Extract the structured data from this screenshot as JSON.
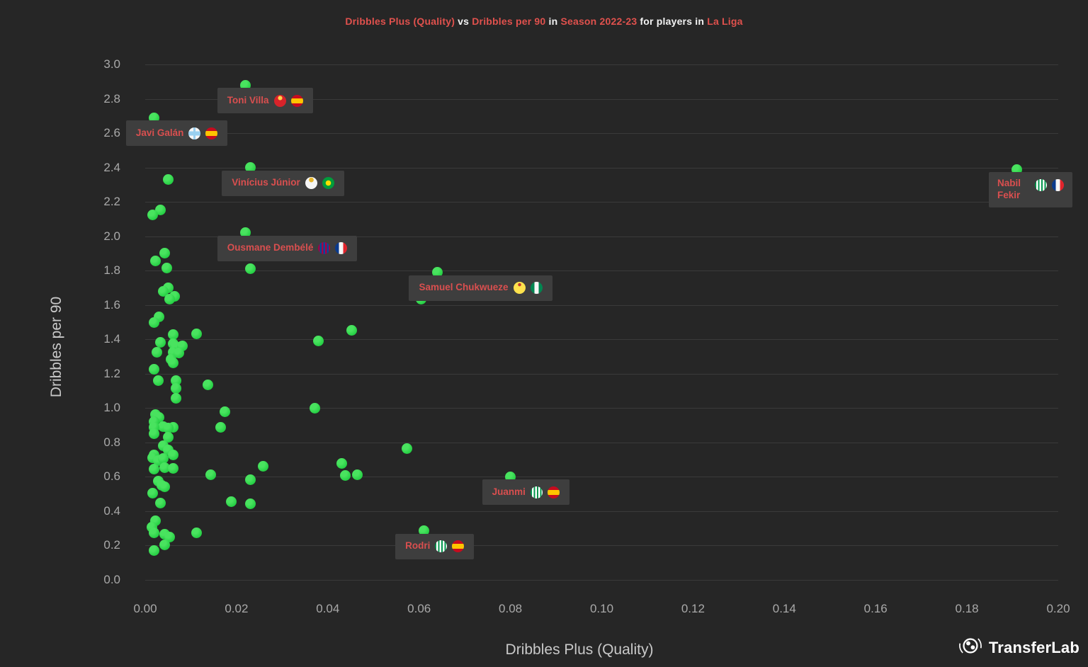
{
  "title": {
    "segments": [
      {
        "text": "Dribbles Plus (Quality)",
        "emphasis": true
      },
      {
        "text": " vs ",
        "emphasis": false
      },
      {
        "text": "Dribbles per 90",
        "emphasis": true
      },
      {
        "text": " in ",
        "emphasis": false
      },
      {
        "text": "Season 2022-23",
        "emphasis": true
      },
      {
        "text": " for players in ",
        "emphasis": false
      },
      {
        "text": "La Liga",
        "emphasis": true
      }
    ]
  },
  "colors": {
    "background": "#262626",
    "gridline": "#3a3a3a",
    "dot_green": "#23ce42",
    "title_emphasis": "#e0514d",
    "label_text": "#d94f4f",
    "label_background": "#3e3e3e",
    "tick_text": "#a9a9a9",
    "axis_title_text": "#c9c9c9"
  },
  "branding": {
    "logo_icon": "football-icon",
    "logo_text": "TransferLab"
  },
  "chart_data": {
    "type": "scatter",
    "title": "Dribbles Plus (Quality) vs Dribbles per 90 in Season 2022-23 for players in La Liga",
    "xlabel": "Dribbles Plus (Quality)",
    "ylabel": "Dribbles per 90",
    "xlim": [
      0.0,
      0.2
    ],
    "ylim": [
      0.0,
      3.0
    ],
    "x_ticks": [
      "0.00",
      "0.02",
      "0.04",
      "0.06",
      "0.08",
      "0.10",
      "0.12",
      "0.14",
      "0.16",
      "0.18",
      "0.20"
    ],
    "y_ticks": [
      "0.0",
      "0.2",
      "0.4",
      "0.6",
      "0.8",
      "1.0",
      "1.2",
      "1.4",
      "1.6",
      "1.8",
      "2.0",
      "2.2",
      "2.4",
      "2.6",
      "2.8",
      "3.0"
    ],
    "grid": "horizontal-only",
    "legend": "none",
    "labeled_points": [
      {
        "name": "Toni Villa",
        "club": "girona",
        "nation": "spain",
        "x": 0.022,
        "y": 2.88,
        "wrap": false
      },
      {
        "name": "Javi Galán",
        "club": "celta",
        "nation": "spain",
        "x": 0.002,
        "y": 2.69,
        "wrap": false
      },
      {
        "name": "Vinícius Júnior",
        "club": "real-madrid",
        "nation": "brazil",
        "x": 0.023,
        "y": 2.4,
        "wrap": false
      },
      {
        "name": "Nabil Fekir",
        "club": "betis",
        "nation": "france",
        "x": 0.191,
        "y": 2.39,
        "wrap": true
      },
      {
        "name": "Ousmane Dembélé",
        "club": "barcelona",
        "nation": "france",
        "x": 0.022,
        "y": 2.02,
        "wrap": false
      },
      {
        "name": "Samuel Chukwueze",
        "club": "villarreal",
        "nation": "nigeria",
        "x": 0.064,
        "y": 1.79,
        "wrap": false
      },
      {
        "name": "Juanmi",
        "club": "betis",
        "nation": "spain",
        "x": 0.08,
        "y": 0.6,
        "wrap": false
      },
      {
        "name": "Rodri",
        "club": "betis",
        "nation": "spain",
        "x": 0.061,
        "y": 0.285,
        "wrap": false
      }
    ],
    "points": [
      [
        0.0051,
        2.33
      ],
      [
        0.0033,
        2.155
      ],
      [
        0.0017,
        2.126
      ],
      [
        0.0043,
        1.9
      ],
      [
        0.0023,
        1.858
      ],
      [
        0.0048,
        1.817
      ],
      [
        0.023,
        1.813
      ],
      [
        0.005,
        1.698
      ],
      [
        0.0039,
        1.681
      ],
      [
        0.0064,
        1.652
      ],
      [
        0.0053,
        1.632
      ],
      [
        0.0604,
        1.632
      ],
      [
        0.0031,
        1.529
      ],
      [
        0.002,
        1.496
      ],
      [
        0.0062,
        1.426
      ],
      [
        0.0112,
        1.434
      ],
      [
        0.0453,
        1.451
      ],
      [
        0.0379,
        1.389
      ],
      [
        0.0034,
        1.381
      ],
      [
        0.0062,
        1.376
      ],
      [
        0.0068,
        1.356
      ],
      [
        0.0082,
        1.36
      ],
      [
        0.0026,
        1.323
      ],
      [
        0.0062,
        1.323
      ],
      [
        0.0074,
        1.319
      ],
      [
        0.0057,
        1.282
      ],
      [
        0.0061,
        1.265
      ],
      [
        0.002,
        1.224
      ],
      [
        0.0029,
        1.158
      ],
      [
        0.0067,
        1.162
      ],
      [
        0.0138,
        1.137
      ],
      [
        0.0067,
        1.113
      ],
      [
        0.0068,
        1.059
      ],
      [
        0.0371,
        1.001
      ],
      [
        0.0175,
        0.977
      ],
      [
        0.0023,
        0.964
      ],
      [
        0.0031,
        0.944
      ],
      [
        0.002,
        0.923
      ],
      [
        0.0039,
        0.894
      ],
      [
        0.0019,
        0.89
      ],
      [
        0.0062,
        0.89
      ],
      [
        0.005,
        0.882
      ],
      [
        0.0166,
        0.89
      ],
      [
        0.002,
        0.849
      ],
      [
        0.0051,
        0.832
      ],
      [
        0.004,
        0.779
      ],
      [
        0.0051,
        0.758
      ],
      [
        0.0574,
        0.766
      ],
      [
        0.002,
        0.729
      ],
      [
        0.0016,
        0.709
      ],
      [
        0.0028,
        0.696
      ],
      [
        0.0039,
        0.705
      ],
      [
        0.0062,
        0.729
      ],
      [
        0.0259,
        0.663
      ],
      [
        0.002,
        0.643
      ],
      [
        0.0042,
        0.655
      ],
      [
        0.0062,
        0.647
      ],
      [
        0.0431,
        0.676
      ],
      [
        0.0438,
        0.606
      ],
      [
        0.0465,
        0.61
      ],
      [
        0.0144,
        0.614
      ],
      [
        0.023,
        0.585
      ],
      [
        0.0028,
        0.573
      ],
      [
        0.0036,
        0.552
      ],
      [
        0.0042,
        0.54
      ],
      [
        0.0016,
        0.503
      ],
      [
        0.0034,
        0.449
      ],
      [
        0.0188,
        0.457
      ],
      [
        0.023,
        0.445
      ],
      [
        0.0023,
        0.346
      ],
      [
        0.0014,
        0.309
      ],
      [
        0.0019,
        0.272
      ],
      [
        0.0042,
        0.264
      ],
      [
        0.0054,
        0.251
      ],
      [
        0.0112,
        0.276
      ],
      [
        0.0042,
        0.202
      ],
      [
        0.0019,
        0.173
      ]
    ]
  }
}
